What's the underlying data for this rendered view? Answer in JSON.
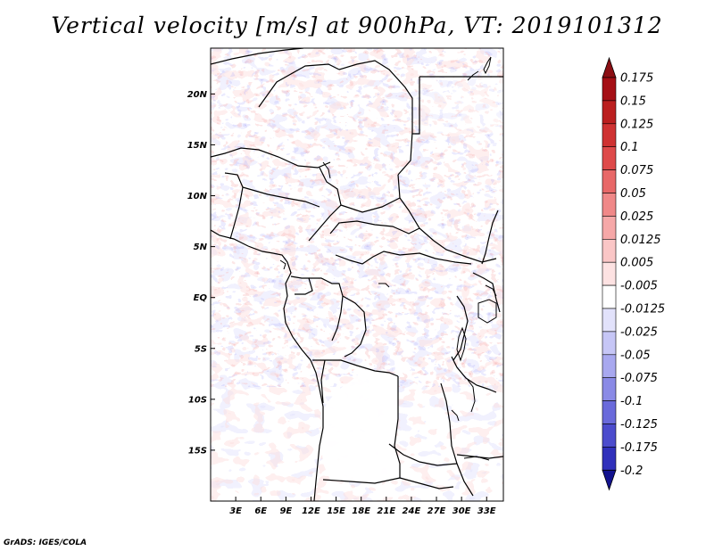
{
  "title": "Vertical velocity [m/s] at 900hPa, VT: 2019101312",
  "credit": "GrADS: IGES/COLA",
  "map": {
    "lon_range": [
      0,
      35
    ],
    "lat_range": [
      -20,
      24.5
    ],
    "x_ticks": [
      {
        "value": 3,
        "label": "3E"
      },
      {
        "value": 6,
        "label": "6E"
      },
      {
        "value": 9,
        "label": "9E"
      },
      {
        "value": 12,
        "label": "12E"
      },
      {
        "value": 15,
        "label": "15E"
      },
      {
        "value": 18,
        "label": "18E"
      },
      {
        "value": 21,
        "label": "21E"
      },
      {
        "value": 24,
        "label": "24E"
      },
      {
        "value": 27,
        "label": "27E"
      },
      {
        "value": 30,
        "label": "30E"
      },
      {
        "value": 33,
        "label": "33E"
      }
    ],
    "y_ticks": [
      {
        "value": 20,
        "label": "20N"
      },
      {
        "value": 15,
        "label": "15N"
      },
      {
        "value": 10,
        "label": "10N"
      },
      {
        "value": 5,
        "label": "5N"
      },
      {
        "value": 0,
        "label": "EQ"
      },
      {
        "value": -5,
        "label": "5S"
      },
      {
        "value": -10,
        "label": "10S"
      },
      {
        "value": -15,
        "label": "15S"
      }
    ]
  },
  "colorbar": {
    "levels": [
      {
        "label": "0.175",
        "color": "#a50f15"
      },
      {
        "label": "0.15",
        "color": "#bb1f1f"
      },
      {
        "label": "0.125",
        "color": "#cf3232"
      },
      {
        "label": "0.1",
        "color": "#de4a4a"
      },
      {
        "label": "0.075",
        "color": "#e86868"
      },
      {
        "label": "0.05",
        "color": "#f08888"
      },
      {
        "label": "0.025",
        "color": "#f6a8a8"
      },
      {
        "label": "0.0125",
        "color": "#fac6c6"
      },
      {
        "label": "0.005",
        "color": "#fde2e2"
      },
      {
        "label": "-0.005",
        "color": "#ffffff"
      },
      {
        "label": "-0.0125",
        "color": "#e2e2fb"
      },
      {
        "label": "-0.025",
        "color": "#c6c6f6"
      },
      {
        "label": "-0.05",
        "color": "#a8a8ef"
      },
      {
        "label": "-0.075",
        "color": "#8a8ae6"
      },
      {
        "label": "-0.1",
        "color": "#6a6adb"
      },
      {
        "label": "-0.125",
        "color": "#4c4ccd"
      },
      {
        "label": "-0.175",
        "color": "#3030bb"
      },
      {
        "label": "-0.2",
        "color": "#1a1aa6"
      }
    ],
    "top_triangle_color": "#8c0f14",
    "bottom_triangle_color": "#13138f"
  }
}
